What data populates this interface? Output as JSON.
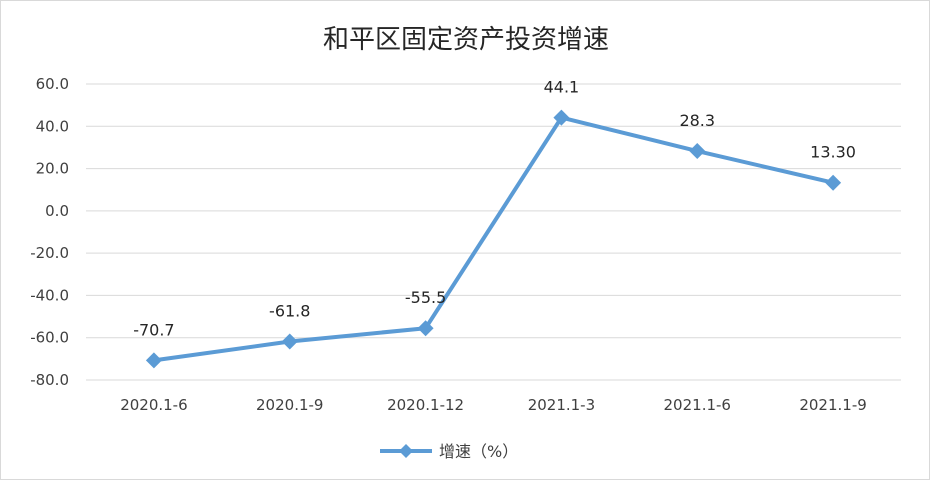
{
  "chart_data": {
    "type": "line",
    "title": "和平区固定资产投资增速",
    "categories": [
      "2020.1-6",
      "2020.1-9",
      "2020.1-12",
      "2021.1-3",
      "2021.1-6",
      "2021.1-9"
    ],
    "series": [
      {
        "name": "增速（%）",
        "values": [
          -70.7,
          -61.8,
          -55.5,
          44.1,
          28.3,
          13.3
        ],
        "data_labels": [
          "-70.7",
          "-61.8",
          "-55.5",
          "44.1",
          "28.3",
          "13.30"
        ]
      }
    ],
    "y_ticks": [
      "60.0",
      "40.0",
      "20.0",
      "0.0",
      "-20.0",
      "-40.0",
      "-60.0",
      "-80.0"
    ],
    "ylim": [
      -80,
      60
    ],
    "xlabel": "",
    "ylabel": "",
    "grid": true,
    "legend_position": "bottom",
    "line_color": "#5b9bd5",
    "marker": "diamond"
  }
}
